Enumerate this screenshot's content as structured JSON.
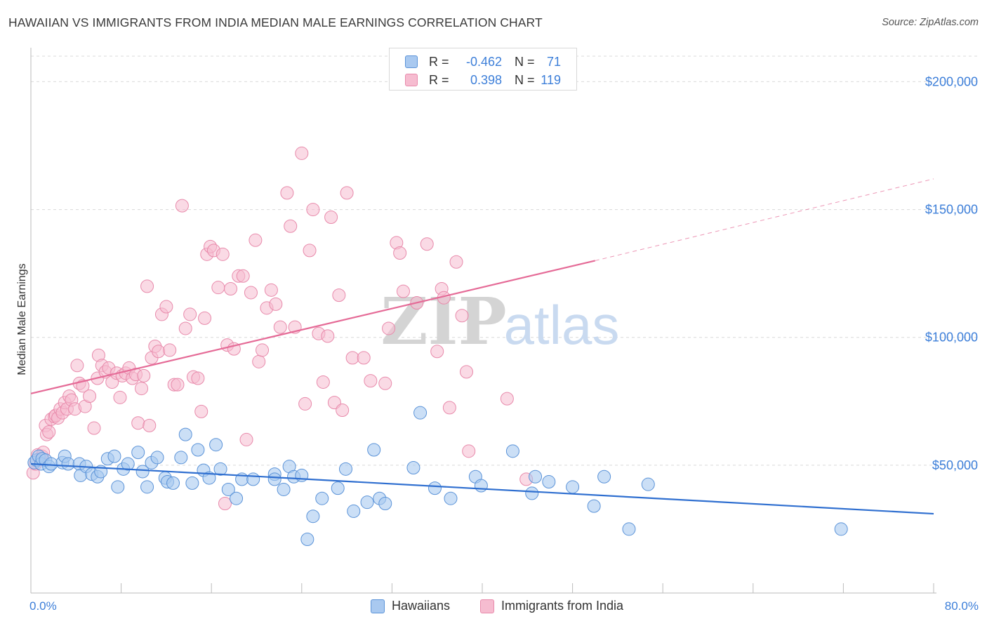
{
  "title": "HAWAIIAN VS IMMIGRANTS FROM INDIA MEDIAN MALE EARNINGS CORRELATION CHART",
  "source": "Source: ZipAtlas.com",
  "watermark": {
    "zip": "ZIP",
    "atlas": "atlas"
  },
  "legend": {
    "rows": [
      {
        "r_label": "R =",
        "r_value": "-0.462",
        "n_label": "N =",
        "n_value": "71"
      },
      {
        "r_label": "R =",
        "r_value": "0.398",
        "n_label": "N =",
        "n_value": "119"
      }
    ]
  },
  "bottom_legend": {
    "series1": "Hawaiians",
    "series2": "Immigrants from India"
  },
  "colors": {
    "blue_fill": "#a9c9f0",
    "blue_stroke": "#5b93d8",
    "blue_line": "#2f6fd0",
    "pink_fill": "#f6bcd0",
    "pink_stroke": "#e88aab",
    "pink_line": "#e56b97",
    "tick_text": "#3d7fd9",
    "grid": "#d9d9d9"
  },
  "chart_data": {
    "type": "scatter",
    "title": "HAWAIIAN VS IMMIGRANTS FROM INDIA MEDIAN MALE EARNINGS CORRELATION CHART",
    "xlabel": "",
    "ylabel": "Median Male Earnings",
    "xlim": [
      0,
      80
    ],
    "ylim": [
      0,
      210000
    ],
    "x_tick_labels": [
      "0.0%",
      "80.0%"
    ],
    "y_ticks": [
      50000,
      100000,
      150000,
      200000
    ],
    "y_tick_labels": [
      "$50,000",
      "$100,000",
      "$150,000",
      "$200,000"
    ],
    "series": [
      {
        "name": "Hawaiians",
        "r": -0.462,
        "n": 71,
        "trend": {
          "x": [
            0,
            80
          ],
          "y": [
            50500,
            31000
          ]
        },
        "points": [
          [
            0.3,
            51000
          ],
          [
            0.5,
            52000
          ],
          [
            0.7,
            53500
          ],
          [
            0.9,
            50500
          ],
          [
            1.0,
            52500
          ],
          [
            1.3,
            52000
          ],
          [
            1.6,
            49500
          ],
          [
            1.8,
            50500
          ],
          [
            2.8,
            51000
          ],
          [
            3.0,
            53500
          ],
          [
            3.3,
            50500
          ],
          [
            4.3,
            50500
          ],
          [
            4.4,
            46000
          ],
          [
            4.9,
            49500
          ],
          [
            5.4,
            46500
          ],
          [
            5.9,
            45500
          ],
          [
            6.2,
            47500
          ],
          [
            6.8,
            52500
          ],
          [
            7.4,
            53500
          ],
          [
            7.7,
            41500
          ],
          [
            8.2,
            48500
          ],
          [
            8.6,
            50500
          ],
          [
            9.5,
            55000
          ],
          [
            9.9,
            47500
          ],
          [
            10.3,
            41500
          ],
          [
            10.7,
            51000
          ],
          [
            11.2,
            53000
          ],
          [
            11.9,
            45000
          ],
          [
            12.1,
            43500
          ],
          [
            12.6,
            43000
          ],
          [
            13.3,
            53000
          ],
          [
            13.7,
            62000
          ],
          [
            14.3,
            43000
          ],
          [
            14.8,
            56000
          ],
          [
            15.3,
            48000
          ],
          [
            15.8,
            45000
          ],
          [
            16.4,
            58000
          ],
          [
            16.8,
            48500
          ],
          [
            17.5,
            40500
          ],
          [
            18.2,
            37000
          ],
          [
            18.7,
            44500
          ],
          [
            19.7,
            44500
          ],
          [
            21.6,
            46500
          ],
          [
            21.6,
            44500
          ],
          [
            22.4,
            40500
          ],
          [
            22.9,
            49500
          ],
          [
            23.3,
            45500
          ],
          [
            24.0,
            46000
          ],
          [
            24.5,
            21000
          ],
          [
            25.0,
            30000
          ],
          [
            25.8,
            37000
          ],
          [
            27.2,
            41000
          ],
          [
            27.9,
            48500
          ],
          [
            28.6,
            32000
          ],
          [
            29.8,
            35500
          ],
          [
            30.4,
            56000
          ],
          [
            30.9,
            37000
          ],
          [
            31.4,
            35000
          ],
          [
            33.9,
            49000
          ],
          [
            34.5,
            70500
          ],
          [
            35.8,
            41000
          ],
          [
            37.2,
            37000
          ],
          [
            39.4,
            45500
          ],
          [
            39.9,
            42000
          ],
          [
            42.7,
            55500
          ],
          [
            44.4,
            39000
          ],
          [
            44.7,
            45500
          ],
          [
            45.9,
            43500
          ],
          [
            48.0,
            41500
          ],
          [
            49.9,
            34000
          ],
          [
            50.8,
            45500
          ],
          [
            53.0,
            25000
          ],
          [
            54.7,
            42500
          ],
          [
            71.8,
            25000
          ]
        ]
      },
      {
        "name": "Immigrants from India",
        "r": 0.398,
        "n": 119,
        "trend": {
          "x": [
            0,
            50
          ],
          "y": [
            78000,
            130000
          ]
        },
        "trend_dashed": {
          "x": [
            50,
            80
          ],
          "y": [
            130000,
            162000
          ]
        },
        "points": [
          [
            0.2,
            47000
          ],
          [
            0.4,
            50500
          ],
          [
            0.6,
            54000
          ],
          [
            0.8,
            52500
          ],
          [
            1.0,
            53500
          ],
          [
            1.1,
            55000
          ],
          [
            1.3,
            65500
          ],
          [
            1.4,
            62000
          ],
          [
            1.6,
            63000
          ],
          [
            1.8,
            68000
          ],
          [
            2.1,
            69000
          ],
          [
            2.2,
            69500
          ],
          [
            2.4,
            68500
          ],
          [
            2.6,
            72000
          ],
          [
            2.8,
            70500
          ],
          [
            3.0,
            74500
          ],
          [
            3.2,
            72000
          ],
          [
            3.4,
            77000
          ],
          [
            3.6,
            75500
          ],
          [
            3.9,
            72000
          ],
          [
            4.1,
            89000
          ],
          [
            4.3,
            82000
          ],
          [
            4.6,
            81000
          ],
          [
            4.8,
            73000
          ],
          [
            5.2,
            77000
          ],
          [
            5.6,
            64500
          ],
          [
            5.9,
            84000
          ],
          [
            6.0,
            93000
          ],
          [
            6.3,
            89000
          ],
          [
            6.6,
            86500
          ],
          [
            6.9,
            88000
          ],
          [
            7.2,
            82500
          ],
          [
            7.6,
            86000
          ],
          [
            7.9,
            76500
          ],
          [
            8.1,
            85000
          ],
          [
            8.4,
            86000
          ],
          [
            8.7,
            88000
          ],
          [
            9.0,
            84000
          ],
          [
            9.3,
            85500
          ],
          [
            9.5,
            66500
          ],
          [
            9.8,
            80000
          ],
          [
            10.0,
            85000
          ],
          [
            10.3,
            120000
          ],
          [
            10.5,
            65500
          ],
          [
            10.7,
            92000
          ],
          [
            11.0,
            96500
          ],
          [
            11.3,
            94500
          ],
          [
            11.6,
            109000
          ],
          [
            12.0,
            112000
          ],
          [
            12.3,
            95000
          ],
          [
            12.7,
            81500
          ],
          [
            13.0,
            81500
          ],
          [
            13.4,
            151500
          ],
          [
            13.7,
            103500
          ],
          [
            14.1,
            109000
          ],
          [
            14.4,
            84500
          ],
          [
            14.8,
            84000
          ],
          [
            15.1,
            71000
          ],
          [
            15.4,
            107500
          ],
          [
            15.6,
            132500
          ],
          [
            15.9,
            135500
          ],
          [
            16.2,
            134000
          ],
          [
            16.6,
            119500
          ],
          [
            17.0,
            132500
          ],
          [
            17.4,
            97000
          ],
          [
            17.7,
            119000
          ],
          [
            18.0,
            95500
          ],
          [
            18.4,
            124000
          ],
          [
            18.8,
            124000
          ],
          [
            19.1,
            60000
          ],
          [
            19.5,
            117500
          ],
          [
            19.9,
            138000
          ],
          [
            20.2,
            90500
          ],
          [
            20.5,
            95000
          ],
          [
            20.9,
            111500
          ],
          [
            21.3,
            118500
          ],
          [
            21.7,
            113000
          ],
          [
            22.1,
            104000
          ],
          [
            22.7,
            156500
          ],
          [
            23.0,
            143500
          ],
          [
            23.4,
            104000
          ],
          [
            24.0,
            172000
          ],
          [
            24.3,
            74000
          ],
          [
            24.7,
            134000
          ],
          [
            25.0,
            150000
          ],
          [
            25.5,
            101500
          ],
          [
            25.9,
            82500
          ],
          [
            26.3,
            100500
          ],
          [
            26.6,
            147000
          ],
          [
            26.9,
            74500
          ],
          [
            27.3,
            116500
          ],
          [
            27.6,
            71500
          ],
          [
            28.0,
            156500
          ],
          [
            28.5,
            92000
          ],
          [
            29.5,
            92000
          ],
          [
            30.1,
            83000
          ],
          [
            31.4,
            82000
          ],
          [
            31.7,
            103500
          ],
          [
            32.4,
            137000
          ],
          [
            32.7,
            133000
          ],
          [
            33.0,
            118000
          ],
          [
            34.2,
            113500
          ],
          [
            35.1,
            136500
          ],
          [
            36.0,
            94500
          ],
          [
            36.4,
            119000
          ],
          [
            36.6,
            115500
          ],
          [
            37.1,
            72500
          ],
          [
            37.7,
            129500
          ],
          [
            38.2,
            108500
          ],
          [
            38.6,
            86500
          ],
          [
            38.8,
            55500
          ],
          [
            42.2,
            76000
          ],
          [
            43.9,
            44500
          ],
          [
            17.2,
            35000
          ]
        ]
      }
    ]
  }
}
